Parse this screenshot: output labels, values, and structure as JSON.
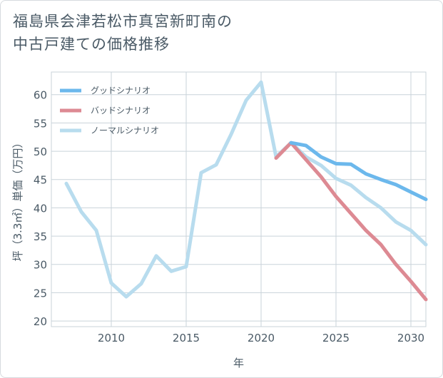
{
  "title": {
    "line1": "福島県会津若松市真宮新町南の",
    "line2": "中古戸建ての価格推移"
  },
  "chart_data": {
    "type": "line",
    "xlabel": "年",
    "ylabel": "坪（3.3㎡）単価（万円）",
    "xlim": [
      2006,
      2031
    ],
    "ylim": [
      19,
      64
    ],
    "xticks": [
      2010,
      2015,
      2020,
      2025,
      2030
    ],
    "yticks": [
      20,
      25,
      30,
      35,
      40,
      45,
      50,
      55,
      60
    ],
    "grid": true,
    "legend_position": "top-left",
    "series": [
      {
        "name": "グッドシナリオ",
        "color": "#6cb8ec",
        "x": [
          2022,
          2023,
          2024,
          2025,
          2026,
          2027,
          2028,
          2029,
          2030,
          2031
        ],
        "y": [
          51.5,
          51.0,
          49.0,
          47.8,
          47.7,
          46.0,
          45.0,
          44.1,
          42.8,
          41.5
        ]
      },
      {
        "name": "バッドシナリオ",
        "color": "#dd8a93",
        "x": [
          2021,
          2022,
          2023,
          2024,
          2025,
          2026,
          2027,
          2028,
          2029,
          2030,
          2031
        ],
        "y": [
          48.8,
          51.5,
          48.5,
          45.5,
          42.0,
          39.0,
          36.0,
          33.5,
          30.0,
          27.0,
          23.8
        ]
      },
      {
        "name": "ノーマルシナリオ",
        "color": "#b8dcee",
        "x": [
          2007,
          2008,
          2009,
          2010,
          2011,
          2012,
          2013,
          2014,
          2015,
          2016,
          2017,
          2018,
          2019,
          2020,
          2021,
          2022,
          2023,
          2024,
          2025,
          2026,
          2027,
          2028,
          2029,
          2030,
          2031
        ],
        "y": [
          44.3,
          39.3,
          36.0,
          26.7,
          24.3,
          26.6,
          31.5,
          28.8,
          29.6,
          46.2,
          47.6,
          53.0,
          59.0,
          62.2,
          49.0,
          51.5,
          49.0,
          47.5,
          45.2,
          44.0,
          41.8,
          40.0,
          37.5,
          36.0,
          33.5
        ]
      }
    ]
  }
}
